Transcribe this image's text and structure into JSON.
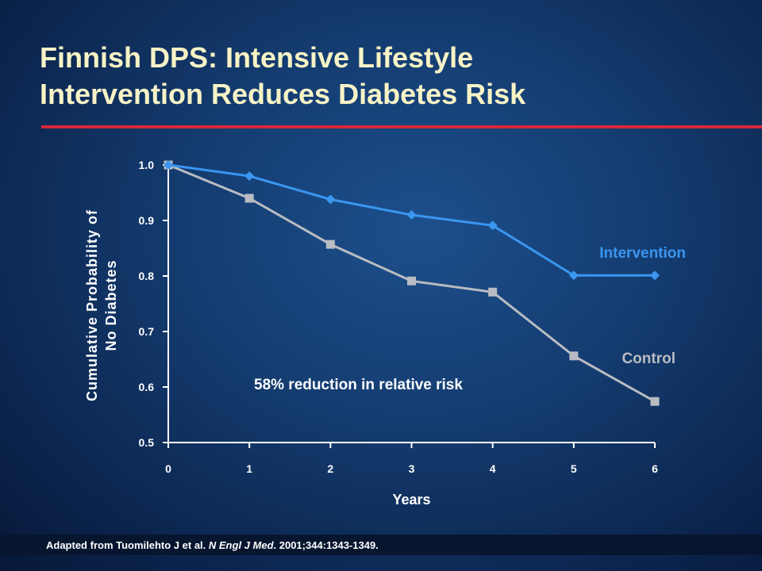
{
  "slide": {
    "title_line1": "Finnish DPS: Intensive Lifestyle",
    "title_line2": "Intervention Reduces Diabetes Risk",
    "accent_rule_color": "#d6283a",
    "source_pre": "Adapted from Tuomilehto J et al. ",
    "source_journal": "N Engl J Med",
    "source_post": ". 2001;344:1343-1349."
  },
  "chart_data": {
    "type": "line",
    "xlabel": "Years",
    "ylabel_line1": "Cumulative Probability of",
    "ylabel_line2": "No Diabetes",
    "x": [
      0,
      1,
      2,
      3,
      4,
      5,
      6
    ],
    "xlim": [
      0,
      6
    ],
    "ylim": [
      0.5,
      1.0
    ],
    "x_ticks": [
      "0",
      "1",
      "2",
      "3",
      "4",
      "5",
      "6"
    ],
    "y_ticks": [
      "0.5",
      "0.6",
      "0.7",
      "0.8",
      "0.9",
      "1.0"
    ],
    "y_tick_values": [
      0.5,
      0.6,
      0.7,
      0.8,
      0.9,
      1.0
    ],
    "grid": false,
    "annotation": "58% reduction in relative risk",
    "series": [
      {
        "name": "Intervention",
        "values": [
          1.0,
          0.98,
          0.938,
          0.91,
          0.891,
          0.801,
          0.801
        ],
        "color": "#3a96f0",
        "marker": "diamond"
      },
      {
        "name": "Control",
        "values": [
          1.0,
          0.94,
          0.857,
          0.791,
          0.771,
          0.656,
          0.574
        ],
        "color": "#b9bcc2",
        "marker": "square"
      }
    ]
  }
}
